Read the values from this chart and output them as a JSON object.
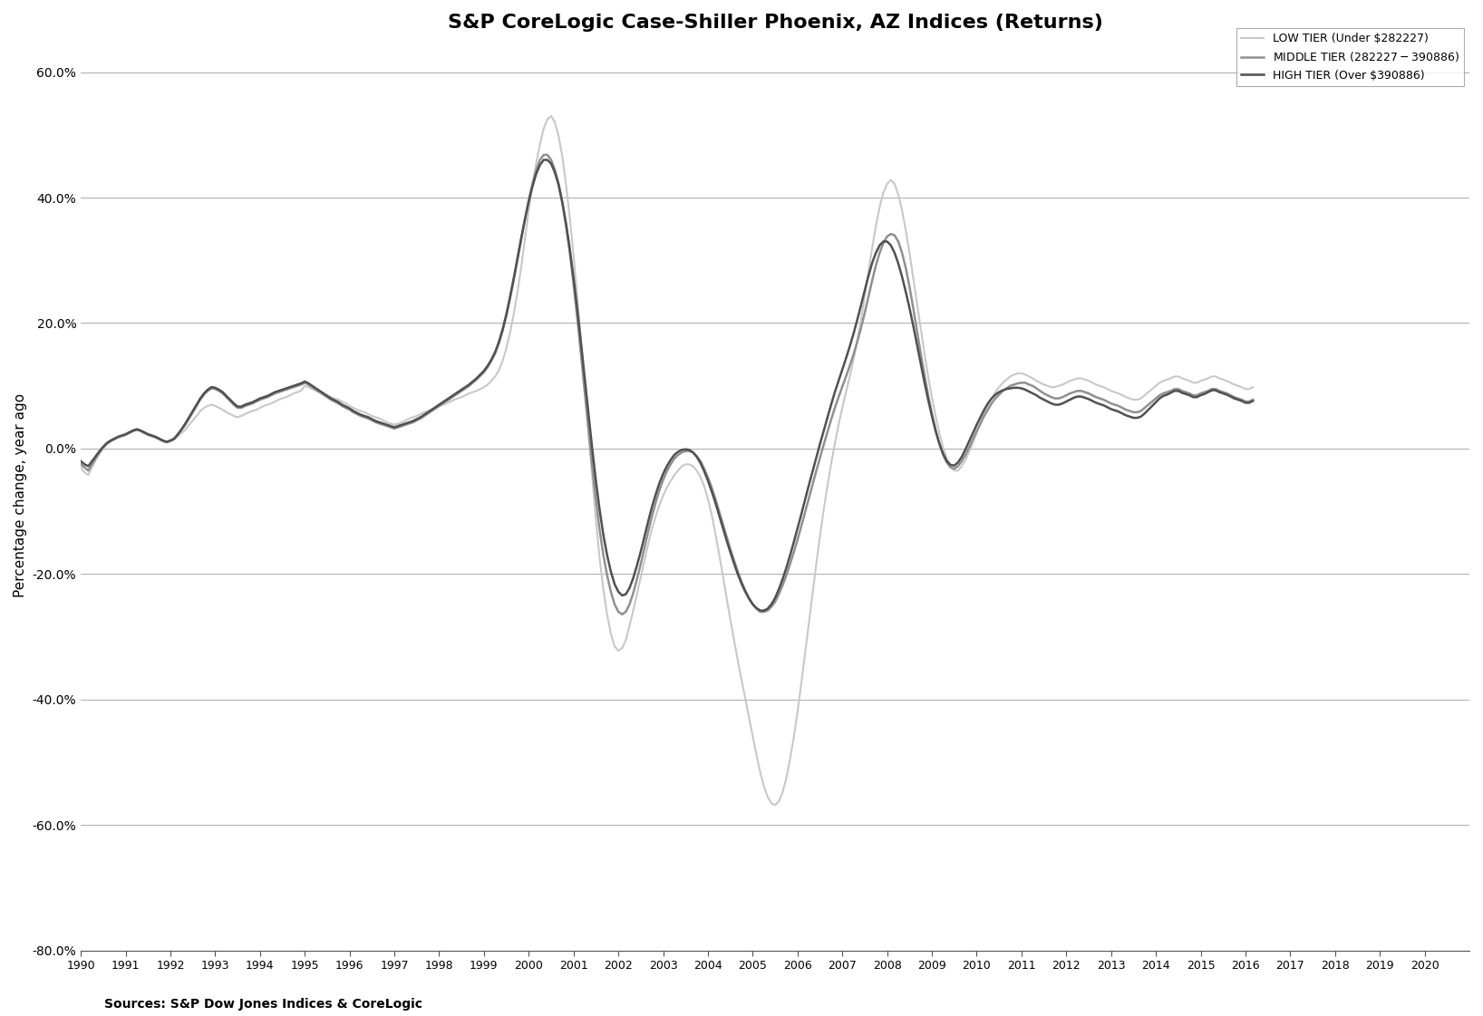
{
  "title": "S&P CoreLogic Case-Shiller Phoenix, AZ Indices (Returns)",
  "ylabel": "Percentage change, year ago",
  "source": "Sources: S&P Dow Jones Indices & CoreLogic",
  "ylim": [
    -0.8,
    0.65
  ],
  "yticks": [
    -0.8,
    -0.6,
    -0.4,
    -0.2,
    0.0,
    0.2,
    0.4,
    0.6
  ],
  "legend_labels": [
    "LOW TIER (Under $282227)",
    "MIDDLE TIER ($282227 - $390886)",
    "HIGH TIER (Over $390886)"
  ],
  "colors": {
    "low": "#c8c8c8",
    "middle": "#909090",
    "high": "#505050"
  },
  "start_year": 1990,
  "start_month": 1,
  "low_tier": [
    -0.03,
    -0.038,
    -0.042,
    -0.03,
    -0.018,
    -0.008,
    0.0,
    0.008,
    0.012,
    0.015,
    0.018,
    0.02,
    0.022,
    0.025,
    0.028,
    0.03,
    0.028,
    0.025,
    0.022,
    0.02,
    0.018,
    0.015,
    0.012,
    0.01,
    0.012,
    0.015,
    0.02,
    0.025,
    0.03,
    0.038,
    0.045,
    0.052,
    0.06,
    0.065,
    0.068,
    0.07,
    0.068,
    0.065,
    0.062,
    0.058,
    0.055,
    0.052,
    0.05,
    0.052,
    0.055,
    0.058,
    0.06,
    0.062,
    0.065,
    0.068,
    0.07,
    0.072,
    0.075,
    0.078,
    0.08,
    0.082,
    0.085,
    0.088,
    0.09,
    0.092,
    0.1,
    0.098,
    0.095,
    0.092,
    0.09,
    0.088,
    0.085,
    0.082,
    0.08,
    0.078,
    0.075,
    0.072,
    0.068,
    0.065,
    0.062,
    0.06,
    0.058,
    0.055,
    0.052,
    0.05,
    0.048,
    0.045,
    0.042,
    0.04,
    0.038,
    0.04,
    0.042,
    0.045,
    0.048,
    0.05,
    0.052,
    0.055,
    0.058,
    0.06,
    0.062,
    0.065,
    0.068,
    0.07,
    0.072,
    0.075,
    0.078,
    0.08,
    0.082,
    0.085,
    0.088,
    0.09,
    0.092,
    0.095,
    0.098,
    0.102,
    0.108,
    0.115,
    0.125,
    0.14,
    0.16,
    0.185,
    0.215,
    0.25,
    0.29,
    0.335,
    0.38,
    0.42,
    0.455,
    0.485,
    0.51,
    0.525,
    0.53,
    0.52,
    0.498,
    0.465,
    0.42,
    0.368,
    0.308,
    0.242,
    0.172,
    0.1,
    0.028,
    -0.045,
    -0.115,
    -0.175,
    -0.225,
    -0.265,
    -0.295,
    -0.315,
    -0.322,
    -0.318,
    -0.305,
    -0.282,
    -0.258,
    -0.232,
    -0.205,
    -0.178,
    -0.152,
    -0.128,
    -0.108,
    -0.09,
    -0.075,
    -0.062,
    -0.052,
    -0.042,
    -0.035,
    -0.028,
    -0.025,
    -0.025,
    -0.028,
    -0.035,
    -0.045,
    -0.06,
    -0.08,
    -0.105,
    -0.135,
    -0.168,
    -0.202,
    -0.238,
    -0.272,
    -0.305,
    -0.338,
    -0.368,
    -0.398,
    -0.428,
    -0.458,
    -0.488,
    -0.515,
    -0.538,
    -0.555,
    -0.565,
    -0.568,
    -0.562,
    -0.548,
    -0.525,
    -0.495,
    -0.46,
    -0.42,
    -0.375,
    -0.328,
    -0.28,
    -0.232,
    -0.185,
    -0.14,
    -0.098,
    -0.06,
    -0.025,
    0.008,
    0.038,
    0.065,
    0.09,
    0.115,
    0.142,
    0.172,
    0.205,
    0.242,
    0.282,
    0.32,
    0.355,
    0.385,
    0.408,
    0.422,
    0.428,
    0.422,
    0.405,
    0.38,
    0.348,
    0.312,
    0.272,
    0.232,
    0.192,
    0.152,
    0.115,
    0.082,
    0.052,
    0.025,
    0.002,
    -0.015,
    -0.028,
    -0.035,
    -0.035,
    -0.028,
    -0.018,
    -0.005,
    0.01,
    0.025,
    0.04,
    0.055,
    0.068,
    0.08,
    0.09,
    0.098,
    0.105,
    0.11,
    0.115,
    0.118,
    0.12,
    0.12,
    0.118,
    0.115,
    0.112,
    0.108,
    0.105,
    0.102,
    0.1,
    0.098,
    0.098,
    0.1,
    0.102,
    0.105,
    0.108,
    0.11,
    0.112,
    0.112,
    0.11,
    0.108,
    0.105,
    0.102,
    0.1,
    0.098,
    0.095,
    0.092,
    0.09,
    0.088,
    0.085,
    0.082,
    0.08,
    0.078,
    0.078,
    0.08,
    0.085,
    0.09,
    0.095,
    0.1,
    0.105,
    0.108,
    0.11,
    0.112,
    0.115,
    0.115,
    0.112,
    0.11,
    0.108,
    0.105,
    0.105,
    0.108,
    0.11,
    0.112,
    0.115,
    0.115,
    0.112,
    0.11,
    0.108,
    0.105,
    0.102,
    0.1,
    0.098,
    0.095,
    0.095,
    0.098
  ],
  "middle_tier": [
    -0.025,
    -0.03,
    -0.035,
    -0.025,
    -0.015,
    -0.006,
    0.002,
    0.008,
    0.012,
    0.015,
    0.018,
    0.02,
    0.022,
    0.025,
    0.028,
    0.03,
    0.028,
    0.025,
    0.022,
    0.02,
    0.018,
    0.015,
    0.012,
    0.01,
    0.012,
    0.015,
    0.022,
    0.03,
    0.038,
    0.048,
    0.058,
    0.068,
    0.078,
    0.086,
    0.092,
    0.096,
    0.095,
    0.092,
    0.088,
    0.082,
    0.076,
    0.07,
    0.065,
    0.065,
    0.068,
    0.07,
    0.072,
    0.075,
    0.078,
    0.08,
    0.082,
    0.085,
    0.088,
    0.09,
    0.092,
    0.094,
    0.096,
    0.098,
    0.1,
    0.102,
    0.105,
    0.102,
    0.098,
    0.094,
    0.09,
    0.086,
    0.082,
    0.078,
    0.075,
    0.072,
    0.068,
    0.065,
    0.062,
    0.058,
    0.055,
    0.052,
    0.05,
    0.048,
    0.045,
    0.042,
    0.04,
    0.038,
    0.036,
    0.034,
    0.032,
    0.034,
    0.036,
    0.038,
    0.04,
    0.042,
    0.045,
    0.048,
    0.052,
    0.056,
    0.06,
    0.064,
    0.068,
    0.072,
    0.076,
    0.08,
    0.084,
    0.088,
    0.092,
    0.096,
    0.1,
    0.105,
    0.11,
    0.116,
    0.122,
    0.13,
    0.14,
    0.152,
    0.168,
    0.188,
    0.212,
    0.24,
    0.27,
    0.302,
    0.334,
    0.366,
    0.396,
    0.422,
    0.444,
    0.46,
    0.468,
    0.468,
    0.46,
    0.444,
    0.422,
    0.392,
    0.355,
    0.312,
    0.262,
    0.208,
    0.15,
    0.09,
    0.03,
    -0.028,
    -0.082,
    -0.13,
    -0.17,
    -0.202,
    -0.228,
    -0.248,
    -0.26,
    -0.264,
    -0.26,
    -0.248,
    -0.23,
    -0.208,
    -0.184,
    -0.158,
    -0.132,
    -0.108,
    -0.086,
    -0.066,
    -0.05,
    -0.036,
    -0.025,
    -0.016,
    -0.01,
    -0.006,
    -0.004,
    -0.004,
    -0.006,
    -0.012,
    -0.02,
    -0.032,
    -0.046,
    -0.062,
    -0.08,
    -0.1,
    -0.12,
    -0.14,
    -0.16,
    -0.178,
    -0.196,
    -0.212,
    -0.226,
    -0.238,
    -0.248,
    -0.255,
    -0.26,
    -0.26,
    -0.258,
    -0.252,
    -0.244,
    -0.232,
    -0.218,
    -0.202,
    -0.184,
    -0.165,
    -0.145,
    -0.124,
    -0.102,
    -0.08,
    -0.058,
    -0.036,
    -0.015,
    0.006,
    0.026,
    0.046,
    0.065,
    0.082,
    0.099,
    0.115,
    0.132,
    0.15,
    0.17,
    0.192,
    0.216,
    0.242,
    0.268,
    0.292,
    0.312,
    0.328,
    0.338,
    0.342,
    0.34,
    0.33,
    0.312,
    0.288,
    0.258,
    0.224,
    0.188,
    0.152,
    0.118,
    0.085,
    0.056,
    0.03,
    0.008,
    -0.01,
    -0.022,
    -0.03,
    -0.032,
    -0.028,
    -0.02,
    -0.01,
    0.002,
    0.015,
    0.028,
    0.04,
    0.052,
    0.062,
    0.072,
    0.08,
    0.086,
    0.092,
    0.096,
    0.1,
    0.102,
    0.104,
    0.105,
    0.105,
    0.102,
    0.1,
    0.096,
    0.092,
    0.088,
    0.085,
    0.082,
    0.08,
    0.08,
    0.082,
    0.085,
    0.088,
    0.09,
    0.092,
    0.092,
    0.09,
    0.088,
    0.085,
    0.082,
    0.08,
    0.078,
    0.075,
    0.072,
    0.07,
    0.068,
    0.065,
    0.062,
    0.06,
    0.058,
    0.058,
    0.06,
    0.065,
    0.07,
    0.075,
    0.08,
    0.085,
    0.088,
    0.09,
    0.092,
    0.095,
    0.095,
    0.092,
    0.09,
    0.088,
    0.085,
    0.085,
    0.088,
    0.09,
    0.092,
    0.095,
    0.095,
    0.092,
    0.09,
    0.088,
    0.085,
    0.082,
    0.08,
    0.078,
    0.075,
    0.075,
    0.078
  ],
  "high_tier": [
    -0.02,
    -0.025,
    -0.028,
    -0.02,
    -0.012,
    -0.004,
    0.003,
    0.009,
    0.013,
    0.016,
    0.019,
    0.021,
    0.023,
    0.026,
    0.029,
    0.031,
    0.029,
    0.026,
    0.023,
    0.021,
    0.019,
    0.016,
    0.013,
    0.011,
    0.013,
    0.016,
    0.023,
    0.031,
    0.04,
    0.05,
    0.06,
    0.07,
    0.08,
    0.088,
    0.094,
    0.098,
    0.097,
    0.094,
    0.09,
    0.084,
    0.078,
    0.072,
    0.067,
    0.067,
    0.07,
    0.072,
    0.074,
    0.077,
    0.08,
    0.082,
    0.084,
    0.087,
    0.09,
    0.092,
    0.094,
    0.096,
    0.098,
    0.1,
    0.102,
    0.104,
    0.107,
    0.104,
    0.1,
    0.096,
    0.092,
    0.088,
    0.084,
    0.08,
    0.077,
    0.074,
    0.07,
    0.067,
    0.064,
    0.06,
    0.057,
    0.054,
    0.052,
    0.05,
    0.047,
    0.044,
    0.042,
    0.04,
    0.038,
    0.036,
    0.034,
    0.036,
    0.038,
    0.04,
    0.042,
    0.044,
    0.047,
    0.05,
    0.054,
    0.058,
    0.062,
    0.066,
    0.07,
    0.074,
    0.078,
    0.082,
    0.086,
    0.09,
    0.094,
    0.098,
    0.102,
    0.107,
    0.112,
    0.118,
    0.124,
    0.132,
    0.142,
    0.154,
    0.17,
    0.19,
    0.214,
    0.242,
    0.272,
    0.304,
    0.336,
    0.366,
    0.394,
    0.418,
    0.438,
    0.452,
    0.46,
    0.46,
    0.454,
    0.44,
    0.42,
    0.392,
    0.358,
    0.318,
    0.272,
    0.222,
    0.168,
    0.112,
    0.056,
    0.0,
    -0.052,
    -0.098,
    -0.138,
    -0.17,
    -0.196,
    -0.216,
    -0.228,
    -0.234,
    -0.232,
    -0.222,
    -0.206,
    -0.186,
    -0.164,
    -0.14,
    -0.116,
    -0.093,
    -0.073,
    -0.055,
    -0.04,
    -0.028,
    -0.018,
    -0.01,
    -0.005,
    -0.002,
    -0.001,
    -0.002,
    -0.006,
    -0.013,
    -0.023,
    -0.036,
    -0.051,
    -0.068,
    -0.086,
    -0.106,
    -0.126,
    -0.146,
    -0.165,
    -0.183,
    -0.2,
    -0.215,
    -0.228,
    -0.239,
    -0.248,
    -0.254,
    -0.258,
    -0.258,
    -0.255,
    -0.248,
    -0.238,
    -0.224,
    -0.208,
    -0.19,
    -0.17,
    -0.149,
    -0.127,
    -0.105,
    -0.082,
    -0.059,
    -0.037,
    -0.015,
    0.007,
    0.028,
    0.049,
    0.07,
    0.09,
    0.108,
    0.126,
    0.144,
    0.163,
    0.183,
    0.205,
    0.228,
    0.252,
    0.275,
    0.296,
    0.312,
    0.324,
    0.33,
    0.33,
    0.324,
    0.312,
    0.295,
    0.274,
    0.25,
    0.224,
    0.196,
    0.166,
    0.136,
    0.106,
    0.078,
    0.052,
    0.028,
    0.008,
    -0.008,
    -0.02,
    -0.026,
    -0.027,
    -0.022,
    -0.013,
    -0.001,
    0.012,
    0.025,
    0.038,
    0.05,
    0.062,
    0.072,
    0.08,
    0.086,
    0.09,
    0.093,
    0.095,
    0.096,
    0.097,
    0.097,
    0.096,
    0.094,
    0.091,
    0.088,
    0.085,
    0.081,
    0.078,
    0.075,
    0.072,
    0.07,
    0.07,
    0.072,
    0.075,
    0.078,
    0.081,
    0.083,
    0.083,
    0.081,
    0.079,
    0.076,
    0.073,
    0.071,
    0.069,
    0.066,
    0.063,
    0.061,
    0.059,
    0.056,
    0.053,
    0.051,
    0.049,
    0.049,
    0.051,
    0.056,
    0.062,
    0.068,
    0.074,
    0.08,
    0.084,
    0.086,
    0.089,
    0.092,
    0.092,
    0.089,
    0.087,
    0.085,
    0.082,
    0.082,
    0.085,
    0.087,
    0.09,
    0.093,
    0.093,
    0.09,
    0.088,
    0.086,
    0.083,
    0.08,
    0.078,
    0.076,
    0.073,
    0.073,
    0.076
  ]
}
